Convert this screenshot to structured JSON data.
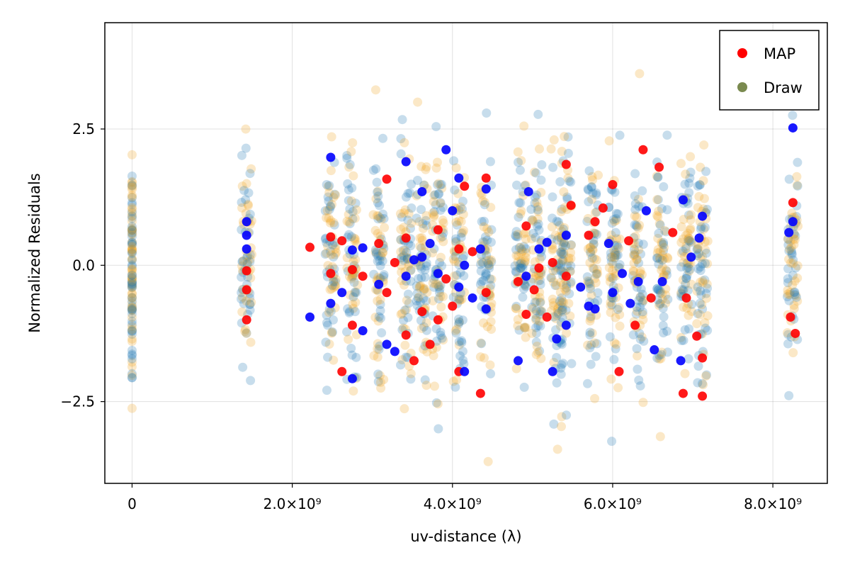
{
  "chart_data": {
    "type": "scatter",
    "title": "",
    "xlabel": "uv-distance (λ)",
    "ylabel": "Normalized Residuals",
    "xlim": [
      -340000000.0,
      8680000000.0
    ],
    "ylim": [
      -4.0,
      4.45
    ],
    "x_ticks": [
      0,
      2000000000.0,
      4000000000.0,
      6000000000.0,
      8000000000.0
    ],
    "x_tick_labels": [
      "0",
      "2.0×10⁹",
      "4.0×10⁹",
      "6.0×10⁹",
      "8.0×10⁹"
    ],
    "y_ticks": [
      -2.5,
      0.0,
      2.5
    ],
    "y_tick_labels": [
      "−2.5",
      "0.0",
      "2.5"
    ],
    "grid": true,
    "legend": {
      "placement": "top-right",
      "entries": [
        {
          "label": "MAP",
          "color": "#ff0000"
        },
        {
          "label": "Draw",
          "color": "#7a8a4f"
        }
      ]
    },
    "baselines": [
      0.0,
      1430000000.0,
      2480000000.0,
      2750000000.0,
      3080000000.0,
      3420000000.0,
      3620000000.0,
      3820000000.0,
      4080000000.0,
      4420000000.0,
      4850000000.0,
      5050000000.0,
      5300000000.0,
      5420000000.0,
      5750000000.0,
      6020000000.0,
      6320000000.0,
      6620000000.0,
      6920000000.0,
      7120000000.0,
      8250000000.0
    ],
    "series": [
      {
        "name": "MAP",
        "colors": [
          "#ff0000",
          "#0000ff"
        ],
        "points": [
          [
            1430000000.0,
            -0.1
          ],
          [
            1430000000.0,
            0.3
          ],
          [
            1430000000.0,
            -0.45
          ],
          [
            1430000000.0,
            0.8
          ],
          [
            1430000000.0,
            -1.0
          ],
          [
            1430000000.0,
            0.55
          ],
          [
            2220000000.0,
            0.33
          ],
          [
            2220000000.0,
            -0.95
          ],
          [
            2480000000.0,
            0.52
          ],
          [
            2480000000.0,
            1.98
          ],
          [
            2480000000.0,
            -0.15
          ],
          [
            2480000000.0,
            -0.7
          ],
          [
            2620000000.0,
            0.45
          ],
          [
            2620000000.0,
            -0.5
          ],
          [
            2620000000.0,
            -1.95
          ],
          [
            2750000000.0,
            0.28
          ],
          [
            2750000000.0,
            -0.08
          ],
          [
            2750000000.0,
            -2.08
          ],
          [
            2750000000.0,
            -1.1
          ],
          [
            2880000000.0,
            0.32
          ],
          [
            2880000000.0,
            -0.2
          ],
          [
            2880000000.0,
            -1.2
          ],
          [
            3080000000.0,
            0.4
          ],
          [
            3080000000.0,
            -0.35
          ],
          [
            3180000000.0,
            1.58
          ],
          [
            3180000000.0,
            -1.45
          ],
          [
            3180000000.0,
            -0.5
          ],
          [
            3280000000.0,
            -1.58
          ],
          [
            3280000000.0,
            0.05
          ],
          [
            3420000000.0,
            1.9
          ],
          [
            3420000000.0,
            0.5
          ],
          [
            3420000000.0,
            -0.2
          ],
          [
            3420000000.0,
            -1.28
          ],
          [
            3520000000.0,
            0.1
          ],
          [
            3520000000.0,
            -1.75
          ],
          [
            3620000000.0,
            1.35
          ],
          [
            3620000000.0,
            -0.85
          ],
          [
            3620000000.0,
            0.15
          ],
          [
            3720000000.0,
            -1.45
          ],
          [
            3720000000.0,
            0.4
          ],
          [
            3820000000.0,
            0.65
          ],
          [
            3820000000.0,
            -0.15
          ],
          [
            3820000000.0,
            -1.0
          ],
          [
            3920000000.0,
            2.12
          ],
          [
            3920000000.0,
            -0.25
          ],
          [
            4000000000.0,
            1.0
          ],
          [
            4000000000.0,
            -0.75
          ],
          [
            4080000000.0,
            1.6
          ],
          [
            4080000000.0,
            -1.95
          ],
          [
            4080000000.0,
            -0.4
          ],
          [
            4080000000.0,
            0.3
          ],
          [
            4150000000.0,
            -1.95
          ],
          [
            4150000000.0,
            1.45
          ],
          [
            4150000000.0,
            0.0
          ],
          [
            4250000000.0,
            0.25
          ],
          [
            4250000000.0,
            -0.6
          ],
          [
            4350000000.0,
            -2.35
          ],
          [
            4350000000.0,
            0.3
          ],
          [
            4420000000.0,
            1.6
          ],
          [
            4420000000.0,
            1.4
          ],
          [
            4420000000.0,
            -0.5
          ],
          [
            4420000000.0,
            -0.8
          ],
          [
            4820000000.0,
            -0.3
          ],
          [
            4820000000.0,
            -1.75
          ],
          [
            4920000000.0,
            0.72
          ],
          [
            4920000000.0,
            -0.2
          ],
          [
            4920000000.0,
            -0.9
          ],
          [
            4950000000.0,
            1.35
          ],
          [
            5020000000.0,
            -0.45
          ],
          [
            5080000000.0,
            0.3
          ],
          [
            5080000000.0,
            -0.05
          ],
          [
            5180000000.0,
            0.42
          ],
          [
            5180000000.0,
            -0.95
          ],
          [
            5250000000.0,
            -1.95
          ],
          [
            5250000000.0,
            0.05
          ],
          [
            5300000000.0,
            -1.35
          ],
          [
            5420000000.0,
            1.85
          ],
          [
            5420000000.0,
            0.55
          ],
          [
            5420000000.0,
            -0.2
          ],
          [
            5420000000.0,
            -1.1
          ],
          [
            5480000000.0,
            1.1
          ],
          [
            5600000000.0,
            -0.4
          ],
          [
            5700000000.0,
            0.55
          ],
          [
            5700000000.0,
            -0.75
          ],
          [
            5780000000.0,
            0.8
          ],
          [
            5780000000.0,
            -0.8
          ],
          [
            5880000000.0,
            1.05
          ],
          [
            5950000000.0,
            0.4
          ],
          [
            6000000000.0,
            1.48
          ],
          [
            6000000000.0,
            -0.5
          ],
          [
            6080000000.0,
            -1.95
          ],
          [
            6120000000.0,
            -0.15
          ],
          [
            6200000000.0,
            0.45
          ],
          [
            6220000000.0,
            -0.7
          ],
          [
            6280000000.0,
            -1.1
          ],
          [
            6320000000.0,
            -0.3
          ],
          [
            6380000000.0,
            2.12
          ],
          [
            6420000000.0,
            1.0
          ],
          [
            6480000000.0,
            -0.6
          ],
          [
            6520000000.0,
            -1.55
          ],
          [
            6580000000.0,
            1.8
          ],
          [
            6620000000.0,
            -0.3
          ],
          [
            6750000000.0,
            0.6
          ],
          [
            6850000000.0,
            -1.75
          ],
          [
            6880000000.0,
            -2.35
          ],
          [
            6880000000.0,
            1.2
          ],
          [
            6920000000.0,
            -0.6
          ],
          [
            6980000000.0,
            0.15
          ],
          [
            7050000000.0,
            -1.3
          ],
          [
            7080000000.0,
            0.5
          ],
          [
            7120000000.0,
            -2.4
          ],
          [
            7120000000.0,
            0.9
          ],
          [
            7120000000.0,
            -1.7
          ],
          [
            8200000000.0,
            0.6
          ],
          [
            8220000000.0,
            -0.95
          ],
          [
            8250000000.0,
            2.52
          ],
          [
            8250000000.0,
            1.15
          ],
          [
            8250000000.0,
            0.8
          ],
          [
            8280000000.0,
            -1.25
          ]
        ]
      },
      {
        "name": "Draw",
        "colors": [
          "#1f77b4",
          "#f0a21e"
        ],
        "marker_opacity": 0.25
      }
    ]
  }
}
